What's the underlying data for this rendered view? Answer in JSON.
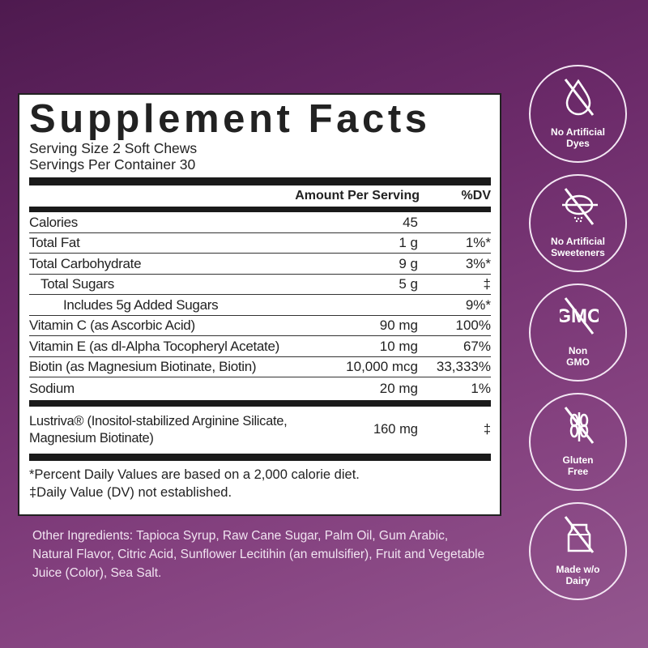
{
  "label": {
    "title": "Supplement Facts",
    "serving_size": "Serving Size 2 Soft Chews",
    "servings_per_container": "Servings Per Container 30",
    "header": {
      "amount": "Amount Per Serving",
      "dv": "%DV"
    },
    "rows": [
      {
        "name": "Calories",
        "amount": "45",
        "dv": ""
      },
      {
        "name": "Total Fat",
        "amount": "1 g",
        "dv": "1%*"
      },
      {
        "name": "Total Carbohydrate",
        "amount": "9 g",
        "dv": "3%*"
      },
      {
        "name": "Total Sugars",
        "amount": "5 g",
        "dv": "‡"
      },
      {
        "name": "Includes 5g Added Sugars",
        "amount": "",
        "dv": "9%*"
      },
      {
        "name": "Vitamin C (as Ascorbic Acid)",
        "amount": "90 mg",
        "dv": "100%"
      },
      {
        "name": "Vitamin E (as dl-Alpha Tocopheryl Acetate)",
        "amount": "10 mg",
        "dv": "67%"
      },
      {
        "name": "Biotin (as Magnesium Biotinate, Biotin)",
        "amount": "10,000 mcg",
        "dv": "33,333%"
      },
      {
        "name": "Sodium",
        "amount": "20 mg",
        "dv": "1%"
      }
    ],
    "proprietary": {
      "name": "Lustriva® (Inositol-stabilized Arginine Silicate, Magnesium Biotinate)",
      "amount": "160 mg",
      "dv": "‡"
    },
    "footnote1": "*Percent Daily Values are based on a 2,000 calorie diet.",
    "footnote2": "‡Daily Value (DV) not established."
  },
  "other_ingredients": "Other Ingredients: Tapioca Syrup, Raw Cane Sugar, Palm Oil, Gum Arabic, Natural Flavor, Citric Acid, Sunflower Lecitihin (an emulsifier), Fruit and Vegetable Juice (Color), Sea Salt.",
  "badges": [
    {
      "icon": "no-drop-icon",
      "line1": "No Artificial",
      "line2": "Dyes"
    },
    {
      "icon": "no-sweetener-icon",
      "line1": "No Artificial",
      "line2": "Sweeteners"
    },
    {
      "icon": "no-gmo-icon",
      "line1": "Non",
      "line2": "GMO",
      "icon_text": "GMO"
    },
    {
      "icon": "no-wheat-icon",
      "line1": "Gluten",
      "line2": "Free"
    },
    {
      "icon": "no-milk-icon",
      "line1": "Made w/o",
      "line2": "Dairy"
    }
  ]
}
